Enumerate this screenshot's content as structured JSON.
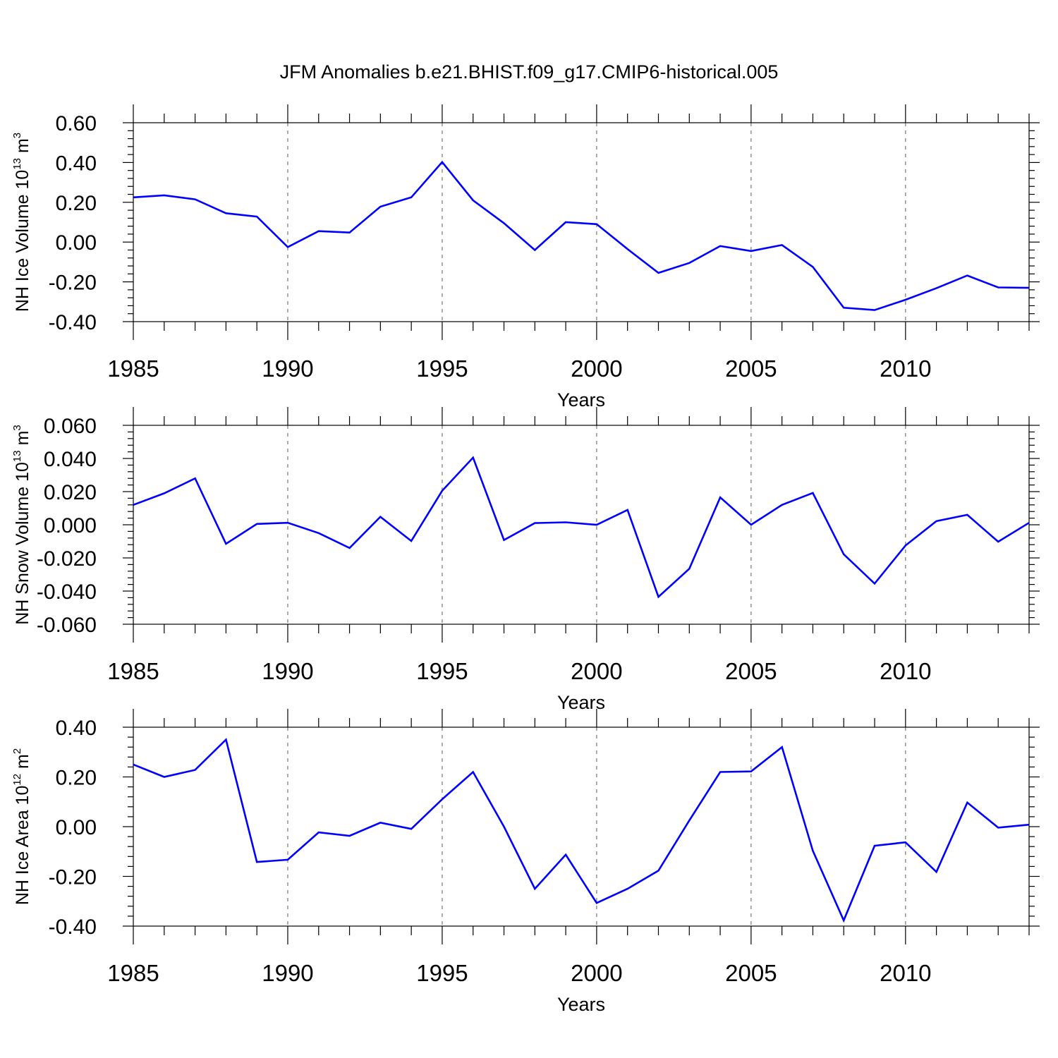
{
  "chart_data": {
    "title": "JFM Anomalies b.e21.BHIST.f09_g17.CMIP6-historical.005",
    "series_color": "#0000ff",
    "years": [
      1985,
      1986,
      1987,
      1988,
      1989,
      1990,
      1991,
      1992,
      1993,
      1994,
      1995,
      1996,
      1997,
      1998,
      1999,
      2000,
      2001,
      2002,
      2003,
      2004,
      2005,
      2006,
      2007,
      2008,
      2009,
      2010,
      2011,
      2012,
      2013,
      2014
    ],
    "panels": [
      {
        "type": "line",
        "name": "ice-volume",
        "ylabel": {
          "text": "NH Ice Volume 10",
          "exp": "13",
          "unit": " m",
          "unit_exp": "3"
        },
        "xlabel": "Years",
        "xlim": [
          1985,
          2014
        ],
        "ylim": [
          -0.4,
          0.6
        ],
        "yticks": [
          -0.4,
          -0.2,
          0.0,
          0.2,
          0.4,
          0.6
        ],
        "ytick_labels": [
          "-0.40",
          "-0.20",
          "0.00",
          "0.20",
          "0.40",
          "0.60"
        ],
        "xticks": [
          1985,
          1990,
          1995,
          2000,
          2005,
          2010
        ],
        "xtick_labels": [
          "1985",
          "1990",
          "1995",
          "2000",
          "2005",
          "2010"
        ],
        "values": [
          0.225,
          0.235,
          0.215,
          0.145,
          0.128,
          -0.025,
          0.055,
          0.048,
          0.178,
          0.225,
          0.402,
          0.21,
          0.095,
          -0.04,
          0.1,
          0.09,
          -0.035,
          -0.155,
          -0.105,
          -0.02,
          -0.045,
          -0.015,
          -0.125,
          -0.33,
          -0.342,
          -0.29,
          -0.232,
          -0.168,
          -0.228,
          -0.23
        ]
      },
      {
        "type": "line",
        "name": "snow-volume",
        "ylabel": {
          "text": "NH Snow Volume 10",
          "exp": "13",
          "unit": " m",
          "unit_exp": "3"
        },
        "xlabel": "Years",
        "xlim": [
          1985,
          2014
        ],
        "ylim": [
          -0.06,
          0.06
        ],
        "yticks": [
          -0.06,
          -0.04,
          -0.02,
          0.0,
          0.02,
          0.04,
          0.06
        ],
        "ytick_labels": [
          "-0.060",
          "-0.040",
          "-0.020",
          "0.000",
          "0.020",
          "0.040",
          "0.060"
        ],
        "xticks": [
          1985,
          1990,
          1995,
          2000,
          2005,
          2010
        ],
        "xtick_labels": [
          "1985",
          "1990",
          "1995",
          "2000",
          "2005",
          "2010"
        ],
        "values": [
          0.012,
          0.019,
          0.028,
          -0.0115,
          0.0005,
          0.0012,
          -0.005,
          -0.014,
          0.0048,
          -0.0098,
          0.0205,
          0.0405,
          -0.0092,
          0.001,
          0.0015,
          0.0,
          0.009,
          -0.0435,
          -0.0265,
          0.0165,
          0.0,
          0.012,
          0.0192,
          -0.0178,
          -0.0355,
          -0.0125,
          0.0022,
          0.006,
          -0.0102,
          0.0012
        ]
      },
      {
        "type": "line",
        "name": "ice-area",
        "ylabel": {
          "text": "NH Ice Area 10",
          "exp": "12",
          "unit": " m",
          "unit_exp": "2"
        },
        "xlabel": "Years",
        "xlim": [
          1985,
          2014
        ],
        "ylim": [
          -0.4,
          0.4
        ],
        "yticks": [
          -0.4,
          -0.2,
          0.0,
          0.2,
          0.4
        ],
        "ytick_labels": [
          "-0.40",
          "-0.20",
          "0.00",
          "0.20",
          "0.40"
        ],
        "xticks": [
          1985,
          1990,
          1995,
          2000,
          2005,
          2010
        ],
        "xtick_labels": [
          "1985",
          "1990",
          "1995",
          "2000",
          "2005",
          "2010"
        ],
        "values": [
          0.25,
          0.2,
          0.228,
          0.35,
          -0.142,
          -0.133,
          -0.023,
          -0.037,
          0.016,
          -0.009,
          0.11,
          0.22,
          0.0,
          -0.25,
          -0.113,
          -0.307,
          -0.25,
          -0.177,
          0.025,
          0.22,
          0.222,
          0.32,
          -0.097,
          -0.377,
          -0.077,
          -0.063,
          -0.182,
          0.097,
          -0.004,
          0.008
        ]
      }
    ]
  }
}
